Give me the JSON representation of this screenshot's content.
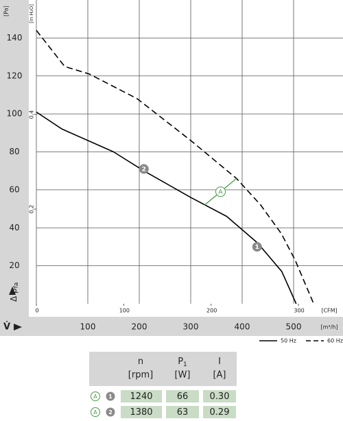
{
  "chart_data": {
    "type": "line",
    "y_unit": "[Pa]",
    "y2_unit": "[in H₂O]",
    "y_label": "Δ p",
    "y_label_sub": "fa",
    "x_label": "V̇",
    "x_unit": "[m³/h]",
    "x2_unit": "[CFM]",
    "xlim": [
      0,
      596
    ],
    "xticks": [
      100,
      200,
      300,
      400,
      500
    ],
    "x2lim": [
      0,
      351
    ],
    "x2ticks": [
      0,
      100,
      200,
      300
    ],
    "ylim": [
      0,
      160
    ],
    "yticks": [
      20,
      40,
      60,
      80,
      100,
      120,
      140
    ],
    "y2lim": [
      0,
      0.642
    ],
    "y2ticks": [
      {
        "value": 0.2,
        "label": "0,2"
      },
      {
        "value": 0.4,
        "label": "0,4"
      }
    ],
    "grid": true,
    "legend": "bottom-right",
    "series": [
      {
        "name": "50 Hz",
        "color": "#000000",
        "dash": false,
        "x": [
          0,
          50,
          100,
          150,
          209,
          300,
          370,
          430,
          477,
          505
        ],
        "values": [
          101,
          92,
          86,
          80,
          70,
          56,
          46,
          32,
          17,
          0
        ]
      },
      {
        "name": "60 Hz",
        "color": "#000000",
        "dash": true,
        "x": [
          0,
          55,
          103,
          196,
          300,
          389,
          436,
          476,
          503,
          539
        ],
        "values": [
          144,
          125,
          121,
          108,
          86,
          66,
          52,
          37,
          23,
          0
        ]
      }
    ],
    "operating_line": {
      "label": "A",
      "color": "#4a9a4a",
      "x": [
        327,
        389
      ],
      "values": [
        52,
        66
      ]
    },
    "points": [
      {
        "label": "1",
        "x": 429,
        "y": 30
      },
      {
        "label": "2",
        "x": 209,
        "y": 71
      }
    ]
  },
  "table": {
    "header": [
      {
        "name": "n",
        "unit": "[rpm]"
      },
      {
        "name": "P",
        "sub": "1",
        "unit": "[W]"
      },
      {
        "name": "I",
        "unit": "[A]"
      }
    ],
    "rows": [
      {
        "curve": "A",
        "point": "1",
        "cells": [
          "1240",
          "66",
          "0.30"
        ]
      },
      {
        "curve": "A",
        "point": "2",
        "cells": [
          "1380",
          "63",
          "0.29"
        ]
      }
    ]
  }
}
